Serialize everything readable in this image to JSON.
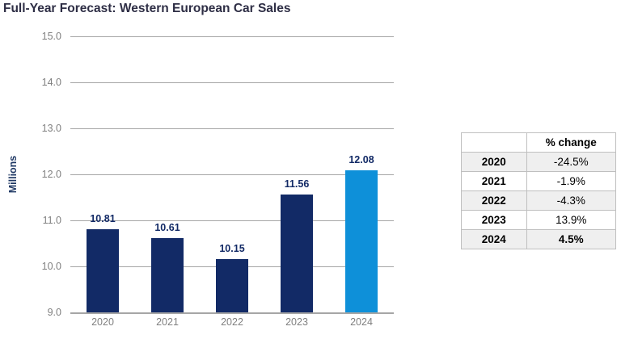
{
  "title": "Full-Year Forecast: Western European Car Sales",
  "chart_data": {
    "type": "bar",
    "title": "Full-Year Forecast: Western European Car Sales",
    "categories": [
      "2020",
      "2021",
      "2022",
      "2023",
      "2024"
    ],
    "values": [
      10.81,
      10.61,
      10.15,
      11.56,
      12.08
    ],
    "data_labels": [
      "10.81",
      "10.61",
      "10.15",
      "11.56",
      "12.08"
    ],
    "bar_colors": [
      "#122a66",
      "#122a66",
      "#122a66",
      "#122a66",
      "#0e90d9"
    ],
    "xlabel": "",
    "ylabel": "Millions",
    "ylim": [
      9.0,
      15.0
    ],
    "ytick_step": 1.0,
    "ytick_labels": [
      "15.0",
      "14.0",
      "13.0",
      "12.0",
      "11.0",
      "10.0",
      "9.0"
    ],
    "grid": true,
    "legend_position": "none"
  },
  "table": {
    "header": [
      "",
      "% change"
    ],
    "rows": [
      {
        "year": "2020",
        "change": "-24.5%",
        "bold_change": false,
        "shaded": true
      },
      {
        "year": "2021",
        "change": "-1.9%",
        "bold_change": false,
        "shaded": false
      },
      {
        "year": "2022",
        "change": "-4.3%",
        "bold_change": false,
        "shaded": true
      },
      {
        "year": "2023",
        "change": "13.9%",
        "bold_change": false,
        "shaded": false
      },
      {
        "year": "2024",
        "change": "4.5%",
        "bold_change": true,
        "shaded": true
      }
    ]
  },
  "colors": {
    "bar_navy": "#122a66",
    "bar_light_blue": "#0e90d9",
    "title_text": "#2e2e45",
    "axis_text": "#7f7f7f",
    "gridline": "#a6a6a6",
    "data_label": "#122a66",
    "ylabel_text": "#1f3864",
    "table_border": "#bfbfbf",
    "table_shaded_row": "#efefef"
  }
}
